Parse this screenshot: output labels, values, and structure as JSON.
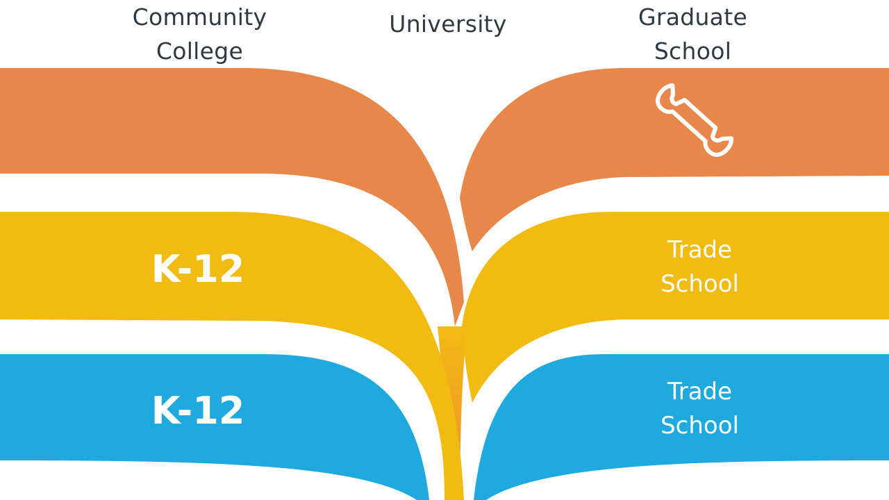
{
  "headers": {
    "community_college": "Community\nCollege",
    "university": "University",
    "graduate_school": "Graduate\nSchool"
  },
  "bands": {
    "orange": {
      "color": "#e8874a",
      "right_icon": "wrench-icon"
    },
    "yellow": {
      "color": "#f2bb12",
      "left_label": "K-12",
      "right_label": "Trade\nSchool"
    },
    "blue": {
      "color": "#1ea9df",
      "left_label": "K-12",
      "right_label": "Trade\nSchool"
    }
  },
  "colors": {
    "background": "#ffffff",
    "text": "#2f3a40",
    "stem_top": "#f2bb12",
    "stem_bottom": "#ef8a2e"
  }
}
